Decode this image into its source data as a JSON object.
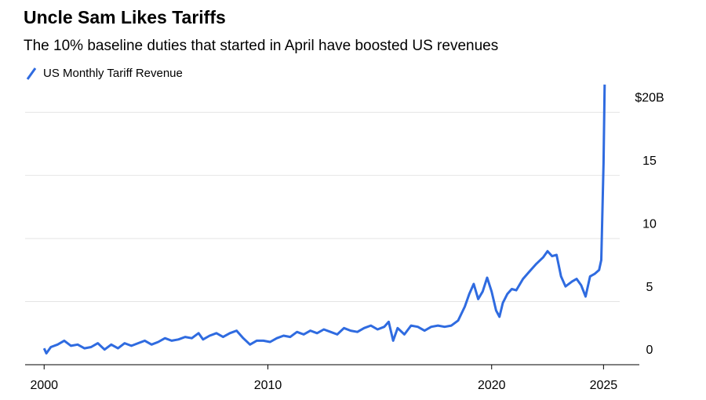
{
  "chart_data": {
    "type": "line",
    "title": "Uncle Sam Likes Tariffs",
    "subtitle": "The 10% baseline duties that started in April have boosted US revenues",
    "xlim": [
      1999.15,
      2026.6
    ],
    "xticks": [
      2000,
      2010,
      2020,
      2025
    ],
    "ylim": [
      0,
      22.5
    ],
    "yticks": [
      0,
      5,
      10,
      15,
      {
        "value": 20,
        "label": "$20B"
      }
    ],
    "grid": true,
    "legend": "top-left",
    "x": [
      2000.0,
      2000.1,
      2000.3,
      2000.6,
      2000.9,
      2001.2,
      2001.5,
      2001.8,
      2002.1,
      2002.4,
      2002.7,
      2003.0,
      2003.3,
      2003.6,
      2003.9,
      2004.2,
      2004.5,
      2004.8,
      2005.1,
      2005.4,
      2005.7,
      2006.0,
      2006.3,
      2006.6,
      2006.9,
      2007.1,
      2007.4,
      2007.7,
      2008.0,
      2008.3,
      2008.6,
      2008.9,
      2009.2,
      2009.5,
      2009.8,
      2010.1,
      2010.4,
      2010.7,
      2011.0,
      2011.3,
      2011.6,
      2011.9,
      2012.2,
      2012.5,
      2012.8,
      2013.1,
      2013.4,
      2013.7,
      2014.0,
      2014.3,
      2014.6,
      2014.9,
      2015.2,
      2015.4,
      2015.6,
      2015.8,
      2016.1,
      2016.4,
      2016.7,
      2017.0,
      2017.3,
      2017.6,
      2017.9,
      2018.2,
      2018.5,
      2018.8,
      2019.0,
      2019.2,
      2019.4,
      2019.6,
      2019.8,
      2020.0,
      2020.2,
      2020.35,
      2020.5,
      2020.7,
      2020.9,
      2021.1,
      2021.4,
      2021.7,
      2022.0,
      2022.3,
      2022.5,
      2022.7,
      2022.9,
      2023.1,
      2023.3,
      2023.6,
      2023.8,
      2024.0,
      2024.2,
      2024.4,
      2024.6,
      2024.8,
      2024.9,
      2025.0,
      2025.05
    ],
    "series": [
      {
        "name": "US Monthly Tariff Revenue",
        "color": "#2f6be0",
        "values": [
          1.3,
          0.9,
          1.4,
          1.6,
          1.9,
          1.5,
          1.6,
          1.3,
          1.4,
          1.7,
          1.2,
          1.6,
          1.3,
          1.7,
          1.5,
          1.7,
          1.9,
          1.6,
          1.8,
          2.1,
          1.9,
          2.0,
          2.2,
          2.1,
          2.5,
          2.0,
          2.3,
          2.5,
          2.2,
          2.5,
          2.7,
          2.1,
          1.6,
          1.9,
          1.9,
          1.8,
          2.1,
          2.3,
          2.2,
          2.6,
          2.4,
          2.7,
          2.5,
          2.8,
          2.6,
          2.4,
          2.9,
          2.7,
          2.6,
          2.9,
          3.1,
          2.8,
          3.0,
          3.4,
          1.9,
          2.9,
          2.4,
          3.1,
          3.0,
          2.7,
          3.0,
          3.1,
          3.0,
          3.1,
          3.5,
          4.6,
          5.6,
          6.4,
          5.2,
          5.8,
          6.9,
          5.8,
          4.3,
          3.8,
          4.9,
          5.6,
          6.0,
          5.9,
          6.8,
          7.4,
          8.0,
          8.5,
          9.0,
          8.6,
          8.7,
          7.0,
          6.2,
          6.6,
          6.8,
          6.3,
          5.4,
          7.0,
          7.2,
          7.5,
          8.3,
          16.0,
          22.2
        ]
      }
    ]
  }
}
